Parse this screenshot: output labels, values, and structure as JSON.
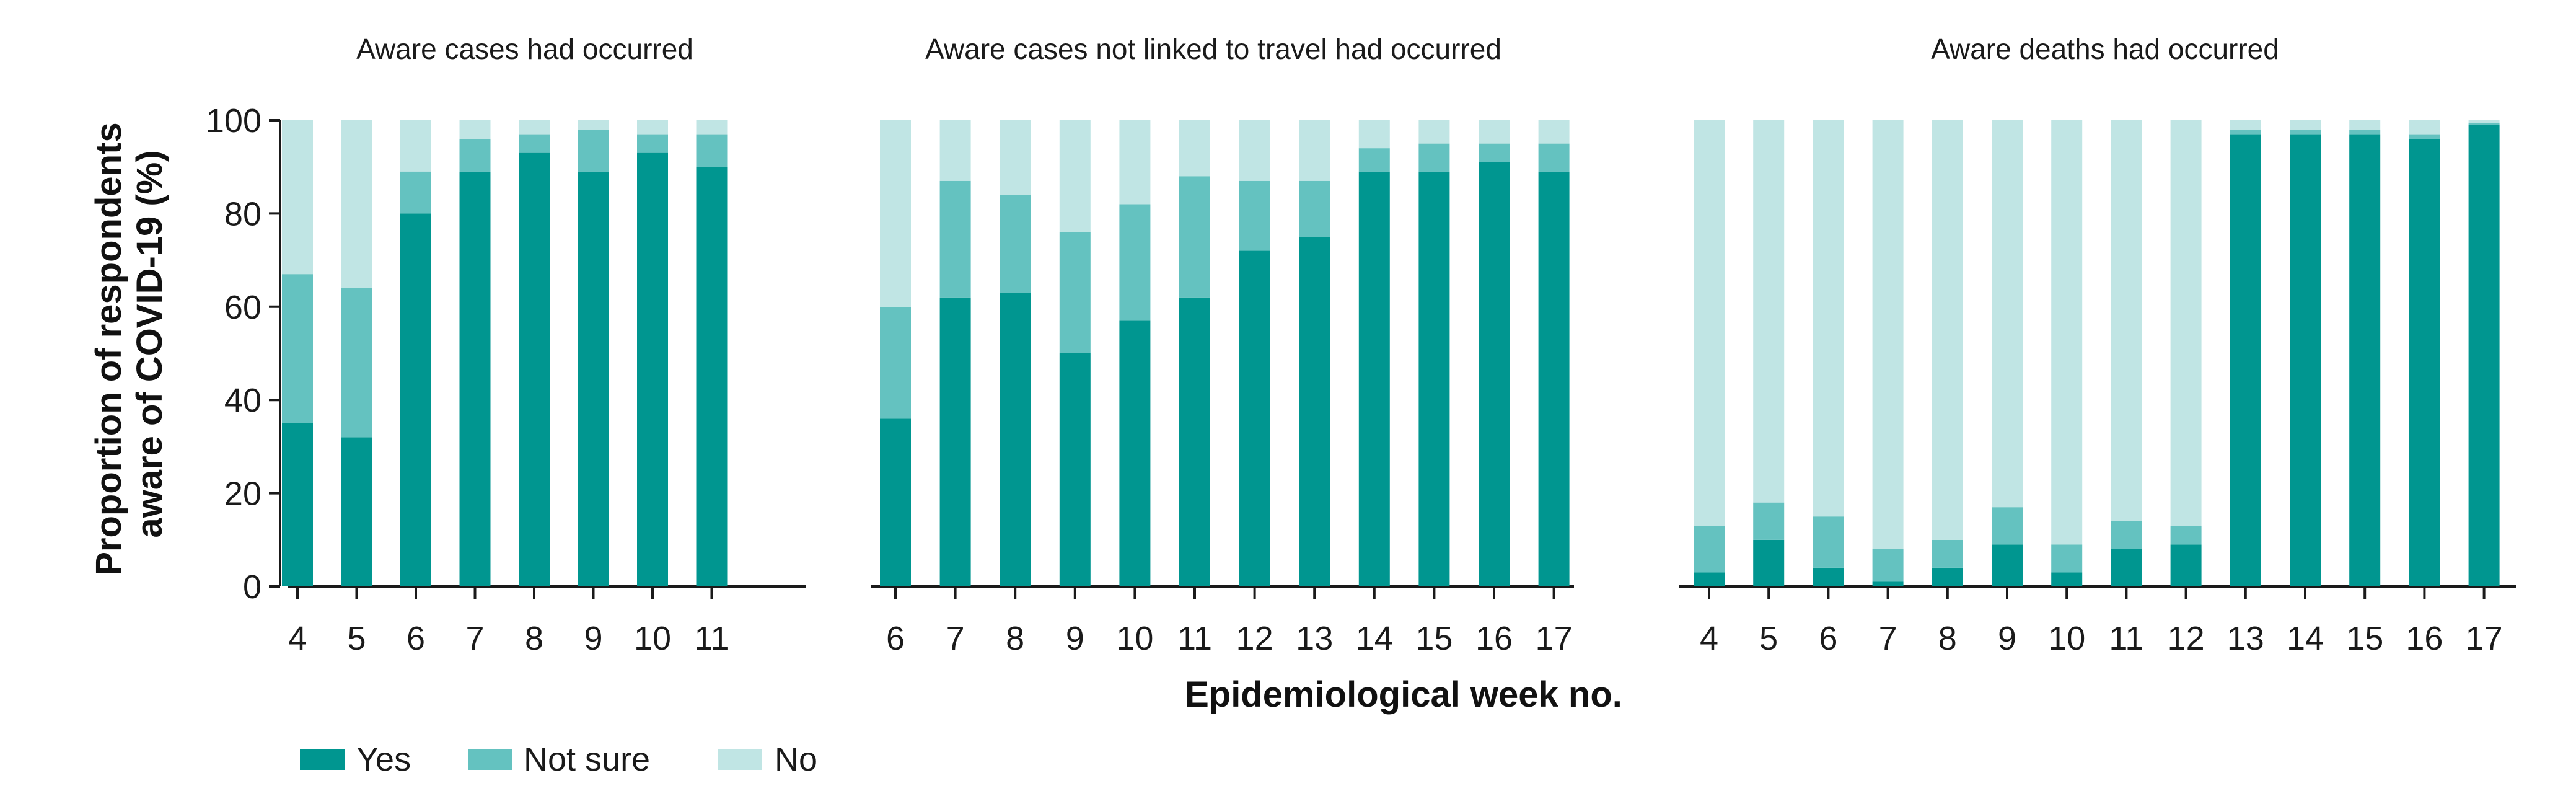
{
  "chart_data": {
    "type": "bar",
    "stacked": true,
    "ylabel_lines": [
      "Proportion of respondents",
      "aware of COVID-19 (%)"
    ],
    "xlabel": "Epidemiological week no.",
    "ylim": [
      0,
      100
    ],
    "yticks": [
      0,
      20,
      40,
      60,
      80,
      100
    ],
    "legend": {
      "placement": "bottom-left",
      "entries": [
        {
          "name": "Yes",
          "color": "#009690"
        },
        {
          "name": "Not sure",
          "color": "#64c2c0"
        },
        {
          "name": "No",
          "color": "#c0e5e4"
        }
      ]
    },
    "panels": [
      {
        "title": "Aware cases had occurred",
        "categories": [
          "4",
          "5",
          "6",
          "7",
          "8",
          "9",
          "10",
          "11"
        ],
        "series": [
          {
            "name": "Yes",
            "values": [
              35,
              32,
              80,
              89,
              93,
              89,
              93,
              90
            ]
          },
          {
            "name": "Not sure",
            "values": [
              32,
              32,
              9,
              7,
              4,
              9,
              4,
              7
            ]
          },
          {
            "name": "No",
            "values": [
              33,
              36,
              11,
              4,
              3,
              2,
              3,
              3
            ]
          }
        ]
      },
      {
        "title": "Aware cases not linked to travel had occurred",
        "categories": [
          "6",
          "7",
          "8",
          "9",
          "10",
          "11",
          "12",
          "13",
          "14",
          "15",
          "16",
          "17"
        ],
        "series": [
          {
            "name": "Yes",
            "values": [
              36,
              62,
              63,
              50,
              57,
              62,
              72,
              75,
              89,
              89,
              91,
              89
            ]
          },
          {
            "name": "Not sure",
            "values": [
              24,
              25,
              21,
              26,
              25,
              26,
              15,
              12,
              5,
              6,
              4,
              6
            ]
          },
          {
            "name": "No",
            "values": [
              40,
              13,
              16,
              24,
              18,
              12,
              13,
              13,
              6,
              5,
              5,
              5
            ]
          }
        ]
      },
      {
        "title": "Aware deaths had occurred",
        "categories": [
          "4",
          "5",
          "6",
          "7",
          "8",
          "9",
          "10",
          "11",
          "12",
          "13",
          "14",
          "15",
          "16",
          "17"
        ],
        "series": [
          {
            "name": "Yes",
            "values": [
              3,
              10,
              4,
              1,
              4,
              9,
              3,
              8,
              9,
              97,
              97,
              97,
              96,
              99
            ]
          },
          {
            "name": "Not sure",
            "values": [
              10,
              8,
              11,
              7,
              6,
              8,
              6,
              6,
              4,
              1,
              1,
              1,
              1,
              0.5
            ]
          },
          {
            "name": "No",
            "values": [
              87,
              82,
              85,
              92,
              90,
              83,
              91,
              86,
              87,
              2,
              2,
              2,
              3,
              0.5
            ]
          }
        ]
      }
    ]
  }
}
